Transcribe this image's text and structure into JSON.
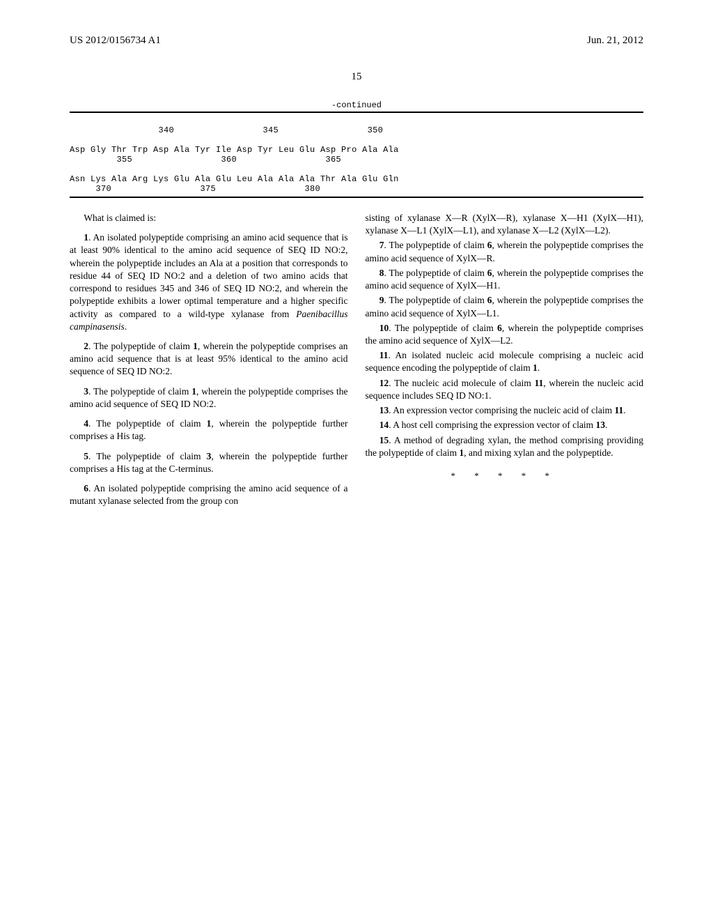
{
  "header": {
    "pub_number": "US 2012/0156734 A1",
    "date": "Jun. 21, 2012"
  },
  "page_num": "15",
  "sequence": {
    "continued": "-continued",
    "line1_nums": "                 340                 345                 350",
    "line2_seq": "Asp Gly Thr Trp Asp Ala Tyr Ile Asp Tyr Leu Glu Asp Pro Ala Ala",
    "line2_nums": "         355                 360                 365",
    "line3_seq": "Asn Lys Ala Arg Lys Glu Ala Glu Leu Ala Ala Ala Thr Ala Glu Gln",
    "line3_nums": "     370                 375                 380"
  },
  "claims": {
    "intro": "What is claimed is:",
    "c1_num": "1",
    "c1": ". An isolated polypeptide comprising an amino acid sequence that is at least 90% identical to the amino acid sequence of SEQ ID NO:2, wherein the polypeptide includes an Ala at a position that corresponds to residue 44 of SEQ ID NO:2 and a deletion of two amino acids that correspond to residues 345 and 346 of SEQ ID NO:2, and wherein the polypeptide exhibits a lower optimal temperature and a higher specific activity as compared to a wild-type xylanase from ",
    "c1_italic": "Paenibacillus campinasensis",
    "c1_end": ".",
    "c2_num": "2",
    "c2": ". The polypeptide of claim ",
    "c2_ref": "1",
    "c2_end": ", wherein the polypeptide comprises an amino acid sequence that is at least 95% identical to the amino acid sequence of SEQ ID NO:2.",
    "c3_num": "3",
    "c3": ". The polypeptide of claim ",
    "c3_ref": "1",
    "c3_end": ", wherein the polypeptide comprises the amino acid sequence of SEQ ID NO:2.",
    "c4_num": "4",
    "c4": ". The polypeptide of claim ",
    "c4_ref": "1",
    "c4_end": ", wherein the polypeptide further comprises a His tag.",
    "c5_num": "5",
    "c5": ". The polypeptide of claim ",
    "c5_ref": "3",
    "c5_end": ", wherein the polypeptide further comprises a His tag at the C-terminus.",
    "c6_num": "6",
    "c6": ". An isolated polypeptide comprising the amino acid sequence of a mutant xylanase selected from the group con",
    "c6_cont": "sisting of xylanase X—R (XylX—R), xylanase X—H1 (XylX—H1), xylanase X—L1 (XylX—L1), and xylanase X—L2 (XylX—L2).",
    "c7_num": "7",
    "c7": ". The polypeptide of claim ",
    "c7_ref": "6",
    "c7_end": ", wherein the polypeptide comprises the amino acid sequence of XylX—R.",
    "c8_num": "8",
    "c8": ". The polypeptide of claim ",
    "c8_ref": "6",
    "c8_end": ", wherein the polypeptide comprises the amino acid sequence of XylX—H1.",
    "c9_num": "9",
    "c9": ". The polypeptide of claim ",
    "c9_ref": "6",
    "c9_end": ", wherein the polypeptide comprises the amino acid sequence of XylX—L1.",
    "c10_num": "10",
    "c10": ". The polypeptide of claim ",
    "c10_ref": "6",
    "c10_end": ", wherein the polypeptide comprises the amino acid sequence of XylX—L2.",
    "c11_num": "11",
    "c11": ". An isolated nucleic acid molecule comprising a nucleic acid sequence encoding the polypeptide of claim ",
    "c11_ref": "1",
    "c11_end": ".",
    "c12_num": "12",
    "c12": ". The nucleic acid molecule of claim ",
    "c12_ref": "11",
    "c12_end": ", wherein the nucleic acid sequence includes SEQ ID NO:1.",
    "c13_num": "13",
    "c13": ". An expression vector comprising the nucleic acid of claim ",
    "c13_ref": "11",
    "c13_end": ".",
    "c14_num": "14",
    "c14": ". A host cell comprising the expression vector of claim ",
    "c14_ref": "13",
    "c14_end": ".",
    "c15_num": "15",
    "c15": ". A method of degrading xylan, the method comprising providing the polypeptide of claim ",
    "c15_ref": "1",
    "c15_end": ", and mixing xylan and the polypeptide."
  },
  "footer_asterisks": "* * * * *"
}
